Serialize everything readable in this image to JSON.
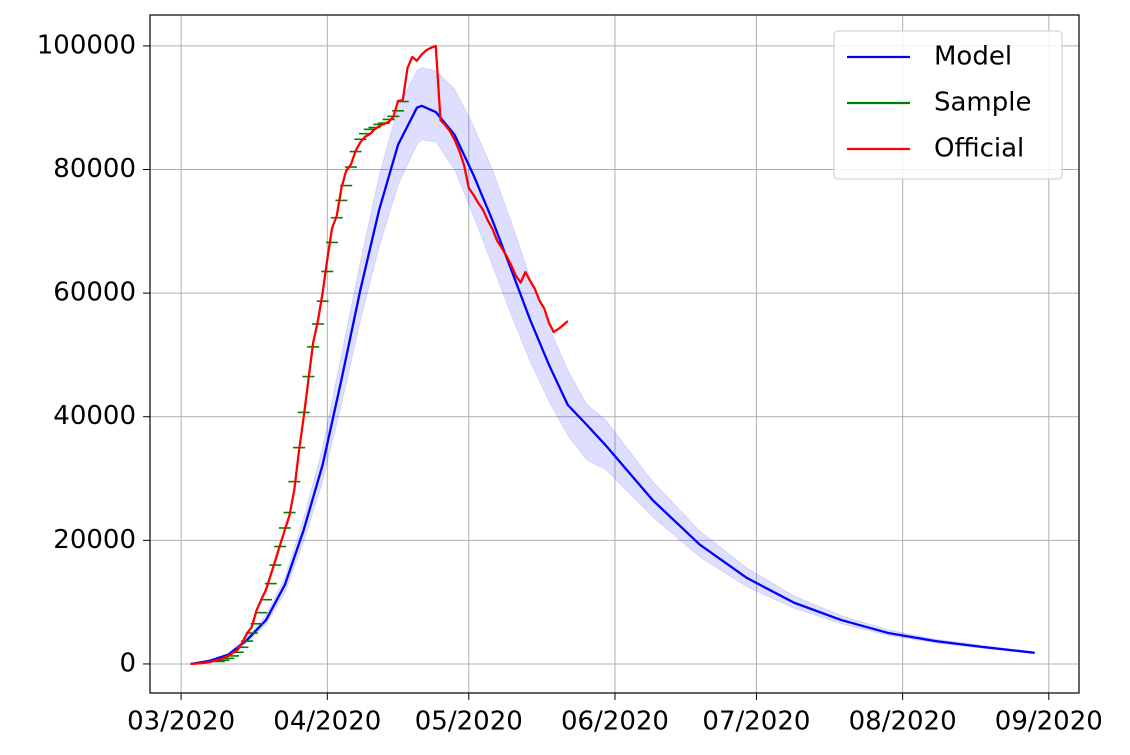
{
  "chart_data": {
    "type": "line",
    "xlim": [
      -6.6,
      190.4
    ],
    "ylim": [
      -4700,
      105000
    ],
    "xticks": [
      {
        "value": 0,
        "label": "03/2020"
      },
      {
        "value": 31,
        "label": "04/2020"
      },
      {
        "value": 61,
        "label": "05/2020"
      },
      {
        "value": 92,
        "label": "06/2020"
      },
      {
        "value": 122,
        "label": "07/2020"
      },
      {
        "value": 153,
        "label": "08/2020"
      },
      {
        "value": 184,
        "label": "09/2020"
      }
    ],
    "yticks": [
      0,
      20000,
      40000,
      60000,
      80000,
      100000
    ],
    "grid": true,
    "legend": "upper right",
    "band": {
      "color": "#0000ff",
      "x": [
        2,
        6,
        10,
        14,
        18,
        22,
        26,
        30,
        34,
        38,
        42,
        46,
        50,
        51,
        54,
        58,
        62,
        66,
        70,
        74,
        78,
        82,
        86,
        90,
        100,
        110,
        120,
        130,
        140,
        150,
        160,
        170,
        181
      ],
      "upper": [
        0,
        600,
        1700,
        4300,
        7900,
        14000,
        23500,
        35000,
        50000,
        65000,
        79000,
        90000,
        96000,
        96500,
        96000,
        93000,
        87000,
        80000,
        71500,
        62500,
        54500,
        47500,
        42000,
        39500,
        29500,
        21500,
        15500,
        11000,
        7800,
        5500,
        4000,
        3000,
        1900
      ],
      "lower": [
        0,
        400,
        1300,
        3500,
        6400,
        11500,
        19800,
        29500,
        42000,
        55500,
        67500,
        77500,
        84000,
        84800,
        84500,
        80000,
        72500,
        64500,
        56500,
        49000,
        42500,
        37000,
        33000,
        31500,
        23800,
        17300,
        12500,
        9000,
        6500,
        4600,
        3400,
        2550,
        1700
      ]
    },
    "series": [
      {
        "name": "Model",
        "color": "#0000ff",
        "x": [
          2,
          6,
          10,
          14,
          18,
          22,
          26,
          30,
          34,
          38,
          42,
          46,
          50,
          51,
          54,
          58,
          62,
          66,
          70,
          74,
          78,
          82,
          86,
          90,
          100,
          110,
          120,
          130,
          140,
          150,
          160,
          170,
          181
        ],
        "values": [
          0,
          500,
          1500,
          3900,
          7100,
          12800,
          21700,
          32200,
          46000,
          60500,
          73500,
          84000,
          90000,
          90300,
          89300,
          85600,
          79100,
          71800,
          63800,
          55700,
          48400,
          41900,
          38700,
          35400,
          26500,
          19300,
          13900,
          9900,
          7100,
          5000,
          3700,
          2750,
          1800
        ]
      },
      {
        "name": "Sample",
        "color": "#008000",
        "marker": "_",
        "x": [
          8,
          9,
          10,
          11,
          12,
          13,
          14,
          15,
          16,
          17,
          18,
          19,
          20,
          21,
          22,
          23,
          24,
          25,
          26,
          27,
          28,
          29,
          30,
          31,
          32,
          33,
          34,
          35,
          36,
          37,
          38,
          39,
          40,
          41,
          42,
          43,
          44,
          45,
          46,
          47
        ],
        "values": [
          400,
          600,
          900,
          1300,
          1900,
          2700,
          3700,
          5000,
          6500,
          8300,
          10400,
          13000,
          16000,
          19000,
          22000,
          24500,
          29500,
          35000,
          40700,
          46500,
          51300,
          55000,
          58700,
          63500,
          68200,
          72200,
          75000,
          77400,
          80400,
          82900,
          84900,
          85800,
          86500,
          86800,
          87300,
          87500,
          88100,
          88600,
          89500,
          91000
        ]
      },
      {
        "name": "Official",
        "color": "#ff0000",
        "x": [
          2,
          3,
          4,
          5,
          6,
          7,
          8,
          9,
          10,
          11,
          12,
          13,
          14,
          15,
          16,
          17,
          18,
          19,
          20,
          21,
          22,
          23,
          24,
          25,
          26,
          27,
          28,
          29,
          30,
          31,
          32,
          33,
          34,
          35,
          36,
          37,
          38,
          39,
          40,
          41,
          42,
          43,
          44,
          45,
          46,
          47,
          48,
          49,
          50,
          51,
          52,
          53,
          54,
          55,
          56,
          57,
          58,
          59,
          60,
          61,
          62,
          63,
          64,
          65,
          66,
          67,
          68,
          69,
          70,
          71,
          72,
          73,
          74,
          75,
          76,
          77,
          78,
          79,
          80,
          81,
          82
        ],
        "values": [
          0,
          50,
          100,
          200,
          300,
          500,
          700,
          1000,
          1300,
          1800,
          2300,
          3500,
          5000,
          6000,
          8700,
          10400,
          12000,
          14400,
          16800,
          19300,
          21700,
          24100,
          28200,
          34500,
          40000,
          46000,
          52000,
          55500,
          60000,
          65500,
          70500,
          72500,
          77000,
          79800,
          80800,
          83000,
          84400,
          85300,
          85700,
          86500,
          87000,
          87400,
          87700,
          88500,
          91100,
          91200,
          96400,
          98200,
          97600,
          98600,
          99300,
          99700,
          100000,
          88000,
          87200,
          86200,
          84800,
          83000,
          80700,
          77000,
          75900,
          74600,
          73500,
          71800,
          70400,
          68500,
          67300,
          66000,
          64500,
          62800,
          61700,
          63400,
          62000,
          60700,
          58800,
          57500,
          55200,
          53700,
          54200,
          54800,
          55500
        ]
      }
    ]
  }
}
